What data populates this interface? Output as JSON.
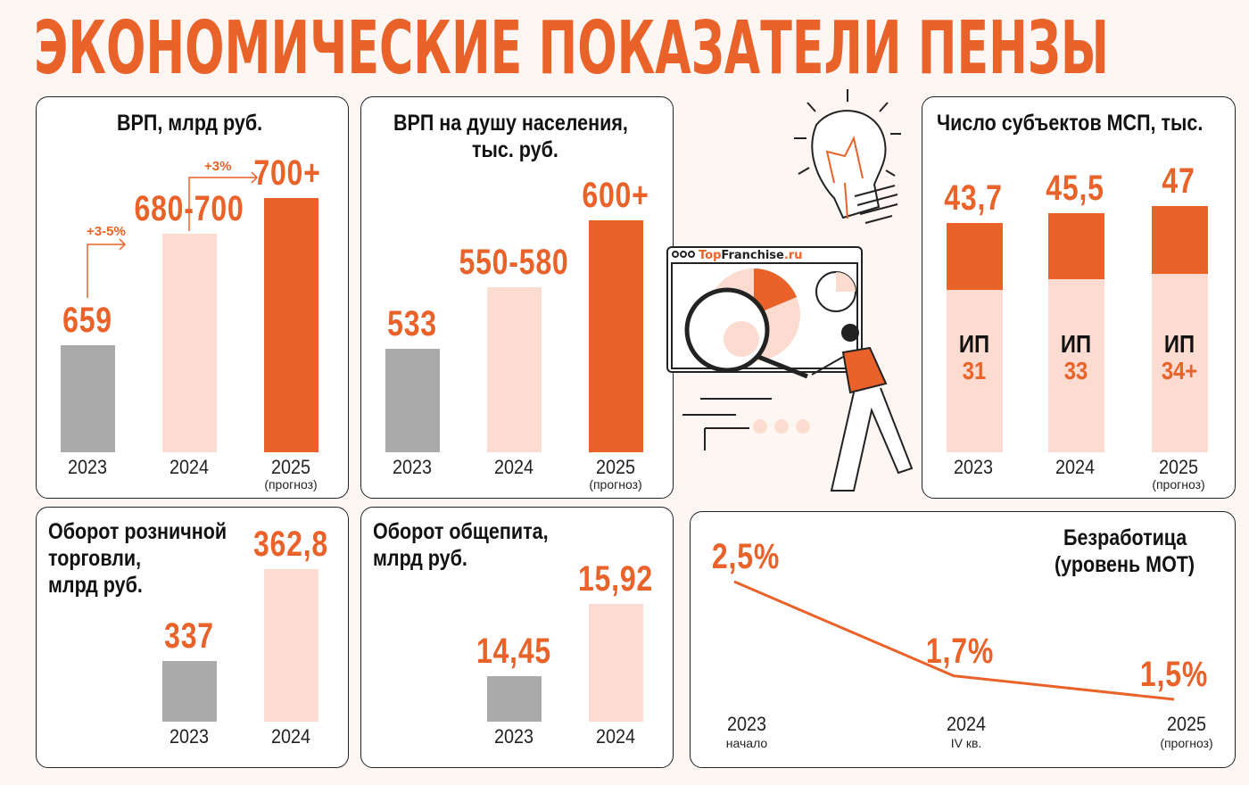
{
  "title": "ЭКОНОМИЧЕСКИЕ ПОКАЗАТЕЛИ ПЕНЗЫ",
  "colors": {
    "accent": "#e8622a",
    "light": "#fcdcd0",
    "gray": "#aaaaaa",
    "background": "#fdf6f2"
  },
  "illustration": {
    "browser_title_a": "Top",
    "browser_title_b": "Franchise",
    "browser_title_c": ".ru"
  },
  "chart_data": [
    {
      "id": "grp",
      "type": "bar",
      "title": "ВРП, млрд руб.",
      "categories": [
        "2023",
        "2024",
        "2025"
      ],
      "category_notes": [
        "",
        "",
        "(прогноз)"
      ],
      "values": [
        659,
        690,
        700
      ],
      "labels": [
        "659",
        "680-700",
        "700+"
      ],
      "bar_colors": [
        "#aaaaaa",
        "#fcdcd0",
        "#e8622a"
      ],
      "annotations": [
        "+3-5%",
        "+3%"
      ]
    },
    {
      "id": "grp_per_capita",
      "type": "bar",
      "title_line1": "ВРП на душу населения,",
      "title_line2": "тыс. руб.",
      "categories": [
        "2023",
        "2024",
        "2025"
      ],
      "category_notes": [
        "",
        "",
        "(прогноз)"
      ],
      "values": [
        533,
        565,
        600
      ],
      "labels": [
        "533",
        "550-580",
        "600+"
      ],
      "bar_colors": [
        "#aaaaaa",
        "#fcdcd0",
        "#e8622a"
      ]
    },
    {
      "id": "sme",
      "type": "bar",
      "stacked": true,
      "title": "Число субъектов МСП, тыс.",
      "categories": [
        "2023",
        "2024",
        "2025"
      ],
      "category_notes": [
        "",
        "",
        "(прогноз)"
      ],
      "totals": [
        43.7,
        45.5,
        47
      ],
      "labels": [
        "43,7",
        "45,5",
        "47"
      ],
      "ip_values": [
        31,
        33,
        34
      ],
      "ip_labels": [
        "31",
        "33",
        "34+"
      ],
      "ip_name": "ИП"
    },
    {
      "id": "retail",
      "type": "bar",
      "title_lines": [
        "Оборот розничной",
        "торговли,",
        "млрд руб."
      ],
      "categories": [
        "2023",
        "2024"
      ],
      "values": [
        337,
        362.8
      ],
      "labels": [
        "337",
        "362,8"
      ],
      "bar_colors": [
        "#aaaaaa",
        "#fcdcd0"
      ]
    },
    {
      "id": "catering",
      "type": "bar",
      "title_lines": [
        "Оборот общепита,",
        "млрд руб."
      ],
      "categories": [
        "2023",
        "2024"
      ],
      "values": [
        14.45,
        15.92
      ],
      "labels": [
        "14,45",
        "15,92"
      ],
      "bar_colors": [
        "#aaaaaa",
        "#fcdcd0"
      ]
    },
    {
      "id": "unemployment",
      "type": "line",
      "title_lines": [
        "Безработица",
        "(уровень МОТ)"
      ],
      "categories": [
        "2023",
        "2024",
        "2025"
      ],
      "category_notes": [
        "начало",
        "IV кв.",
        "(прогноз)"
      ],
      "values": [
        2.5,
        1.7,
        1.5
      ],
      "labels": [
        "2,5%",
        "1,7%",
        "1,5%"
      ]
    }
  ]
}
